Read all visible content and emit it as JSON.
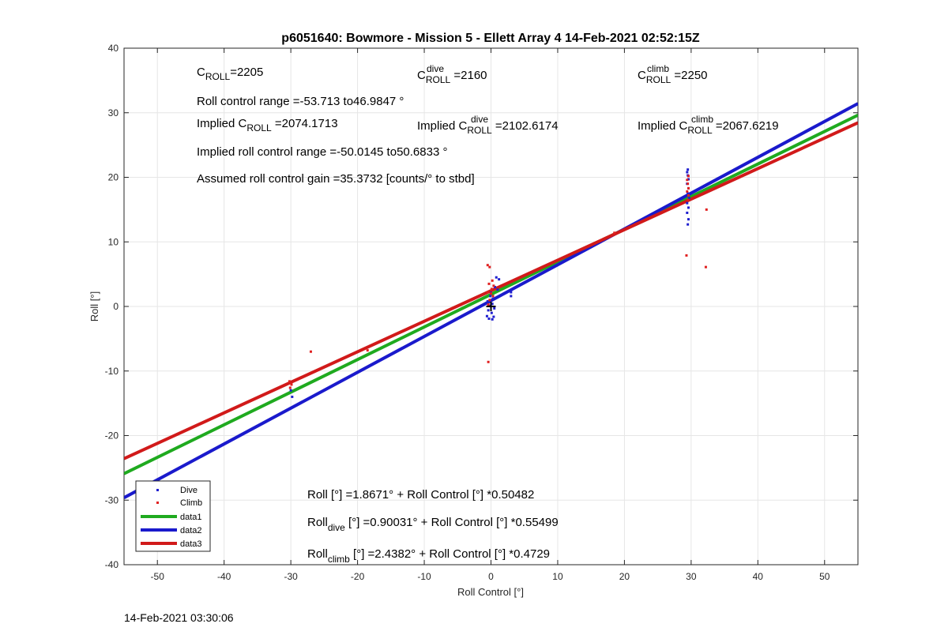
{
  "chart_data": {
    "type": "scatter",
    "title": "p6051640: Bowmore - Mission 5 - Ellett Array 4 14-Feb-2021 02:52:15Z",
    "xlabel": "Roll Control [°]",
    "ylabel": "Roll [°]",
    "xlim": [
      -55,
      55
    ],
    "ylim": [
      -40,
      40
    ],
    "xticks": [
      -50,
      -40,
      -30,
      -20,
      -10,
      0,
      10,
      20,
      30,
      40,
      50
    ],
    "yticks": [
      -40,
      -30,
      -20,
      -10,
      0,
      10,
      20,
      30,
      40
    ],
    "grid": true,
    "legend_position": "bottom-left",
    "colors": {
      "dive": "#1f1fcf",
      "climb": "#e02020",
      "data1": "#1faa1f",
      "data2": "#1a1acc",
      "data3": "#d11a1a",
      "center_marker": "#000000"
    },
    "series": [
      {
        "name": "Dive",
        "kind": "points",
        "points": [
          [
            -29.8,
            -14.0
          ],
          [
            -30.0,
            -13.0
          ],
          [
            -0.3,
            -1.9
          ],
          [
            0.2,
            -2.0
          ],
          [
            -0.6,
            -1.5
          ],
          [
            0.4,
            -1.6
          ],
          [
            0.1,
            -1.0
          ],
          [
            -0.4,
            -0.6
          ],
          [
            0.5,
            -0.3
          ],
          [
            -0.2,
            0.1
          ],
          [
            0.2,
            0.4
          ],
          [
            -0.5,
            0.8
          ],
          [
            0.3,
            1.2
          ],
          [
            -0.1,
            1.6
          ],
          [
            0.0,
            2.1
          ],
          [
            1.0,
            2.6
          ],
          [
            0.6,
            3.0
          ],
          [
            1.2,
            4.2
          ],
          [
            0.8,
            4.5
          ],
          [
            3.0,
            1.6
          ],
          [
            3.0,
            2.2
          ],
          [
            29.5,
            12.7
          ],
          [
            29.6,
            13.5
          ],
          [
            29.4,
            14.5
          ],
          [
            29.6,
            15.3
          ],
          [
            29.4,
            16.0
          ],
          [
            29.7,
            16.8
          ],
          [
            29.5,
            17.5
          ],
          [
            29.6,
            18.3
          ],
          [
            29.4,
            19.0
          ],
          [
            29.6,
            19.7
          ],
          [
            29.5,
            20.3
          ],
          [
            29.4,
            20.8
          ],
          [
            29.5,
            21.2
          ]
        ]
      },
      {
        "name": "Climb",
        "kind": "points",
        "points": [
          [
            -30.2,
            -11.6
          ],
          [
            -29.9,
            -12.1
          ],
          [
            -30.1,
            -12.6
          ],
          [
            -27.0,
            -7.0
          ],
          [
            -18.5,
            -6.8
          ],
          [
            -0.4,
            -8.6
          ],
          [
            -0.4,
            0.3
          ],
          [
            -0.2,
            1.0
          ],
          [
            0.3,
            1.6
          ],
          [
            -0.5,
            2.2
          ],
          [
            0.1,
            2.7
          ],
          [
            0.4,
            3.2
          ],
          [
            -0.3,
            3.5
          ],
          [
            0.2,
            4.0
          ],
          [
            -0.5,
            6.4
          ],
          [
            -0.2,
            6.1
          ],
          [
            0.0,
            2.0
          ],
          [
            18.5,
            11.4
          ],
          [
            29.3,
            7.9
          ],
          [
            29.5,
            16.5
          ],
          [
            29.6,
            17.2
          ],
          [
            29.4,
            17.8
          ],
          [
            29.6,
            18.3
          ],
          [
            29.5,
            19.0
          ],
          [
            29.4,
            19.6
          ],
          [
            29.6,
            20.2
          ],
          [
            32.3,
            15.0
          ],
          [
            32.2,
            6.1
          ]
        ]
      },
      {
        "name": "data1",
        "kind": "line",
        "intercept": 1.8671,
        "slope": 0.50482
      },
      {
        "name": "data2",
        "kind": "line",
        "intercept": 0.90031,
        "slope": 0.55499
      },
      {
        "name": "data3",
        "kind": "line",
        "intercept": 2.4382,
        "slope": 0.4729
      }
    ],
    "center_marker": [
      0,
      0
    ],
    "annotations": {
      "c_roll": {
        "base": "C",
        "sub": "ROLL",
        "sup": "",
        "value": "=2205"
      },
      "c_roll_dive": {
        "base": "C",
        "sub": "ROLL",
        "sup": "dive",
        "value": " =2160"
      },
      "c_roll_climb": {
        "base": "C",
        "sub": "ROLL",
        "sup": "climb",
        "value": " =2250"
      },
      "roll_control_range": "Roll control range =-53.713 to46.9847 °",
      "implied_c_roll": {
        "prefix": "Implied C",
        "sub": "ROLL",
        "sup": "",
        "value": " =2074.1713"
      },
      "implied_c_roll_dive": {
        "prefix": "Implied C",
        "sub": "ROLL",
        "sup": "dive",
        "value": " =2102.6174"
      },
      "implied_c_roll_climb": {
        "prefix": "Implied C",
        "sub": "ROLL",
        "sup": "climb",
        "value": " =2067.6219"
      },
      "implied_roll_range": "Implied roll control range =-50.0145 to50.6833 °",
      "gain": "Assumed roll control gain =35.3732 [counts/° to stbd]",
      "fit_all": "Roll [°] =1.8671° + Roll Control [°] *0.50482",
      "fit_dive": {
        "base": "Roll",
        "sub": "dive",
        "rest": " [°] =0.90031° + Roll Control [°] *0.55499"
      },
      "fit_climb": {
        "base": "Roll",
        "sub": "climb",
        "rest": " [°] =2.4382° + Roll Control [°] *0.4729"
      }
    },
    "legend": [
      "Dive",
      "Climb",
      "data1",
      "data2",
      "data3"
    ]
  },
  "timestamp": "14-Feb-2021 03:30:06"
}
